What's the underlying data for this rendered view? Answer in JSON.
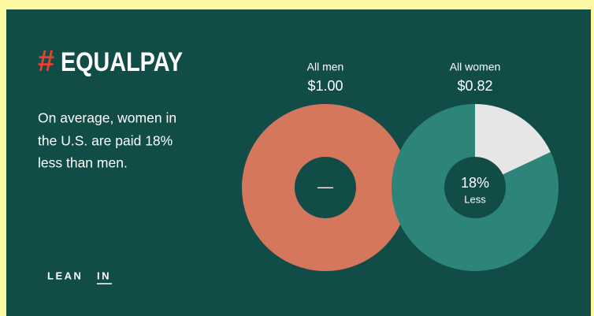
{
  "header": {
    "hash": "#",
    "title": "EQUALPAY",
    "intro": [
      "On average, women in",
      "the U.S. are paid 18%",
      "less than men."
    ]
  },
  "footer": {
    "logo": [
      "LEAN",
      "IN"
    ]
  },
  "chart_data": {
    "type": "donut",
    "categories": [
      "All men",
      "All women"
    ],
    "values": [
      1.0,
      0.82
    ],
    "value_labels": [
      "$1.00",
      "$0.82"
    ],
    "colors": [
      "#d4775c",
      "#2d8479"
    ],
    "center_label": "—",
    "difference": {
      "value": 18,
      "label": "18%",
      "caption": "Less",
      "color": "#e6e6e6"
    }
  }
}
